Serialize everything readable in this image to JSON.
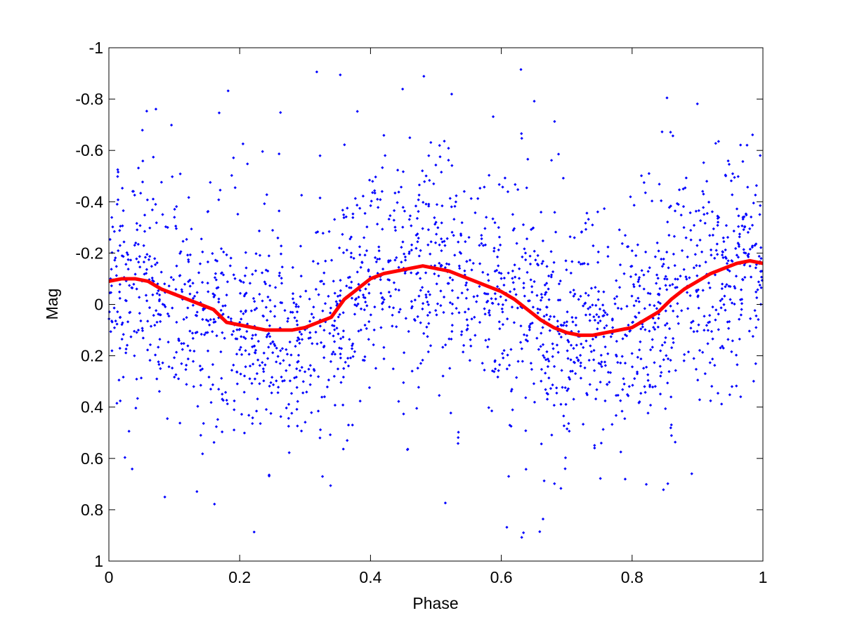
{
  "chart_data": {
    "type": "scatter",
    "title": "",
    "xlabel": "Phase",
    "ylabel": "Mag",
    "xlim": [
      0,
      1
    ],
    "ylim": [
      -1,
      1
    ],
    "y_reversed": true,
    "x_ticks": [
      "0",
      "0.2",
      "0.4",
      "0.6",
      "0.8",
      "1"
    ],
    "x_tick_values": [
      0,
      0.2,
      0.4,
      0.6,
      0.8,
      1
    ],
    "y_ticks": [
      "-1",
      "-0.8",
      "-0.6",
      "-0.4",
      "-0.2",
      "0",
      "0.2",
      "0.4",
      "0.6",
      "0.8",
      "1"
    ],
    "y_tick_values": [
      -1,
      -0.8,
      -0.6,
      -0.4,
      -0.2,
      0,
      0.2,
      0.4,
      0.6,
      0.8,
      1
    ],
    "grid": false,
    "legend": "none",
    "series": [
      {
        "kind": "scatter",
        "color": "#0000ff",
        "approx_count": 2000,
        "trend_amplitude": 1.0,
        "noise_sigma": 0.2,
        "outlier_fraction": 0.08
      },
      {
        "kind": "line",
        "color": "#ff0000",
        "x": [
          0,
          0.02,
          0.04,
          0.06,
          0.08,
          0.1,
          0.12,
          0.14,
          0.16,
          0.18,
          0.2,
          0.22,
          0.24,
          0.26,
          0.28,
          0.3,
          0.32,
          0.34,
          0.36,
          0.38,
          0.4,
          0.42,
          0.44,
          0.46,
          0.48,
          0.5,
          0.52,
          0.54,
          0.56,
          0.58,
          0.6,
          0.62,
          0.64,
          0.66,
          0.68,
          0.7,
          0.72,
          0.74,
          0.76,
          0.78,
          0.8,
          0.82,
          0.84,
          0.86,
          0.88,
          0.9,
          0.92,
          0.94,
          0.96,
          0.98,
          1.0
        ],
        "y": [
          -0.09,
          -0.1,
          -0.1,
          -0.09,
          -0.06,
          -0.04,
          -0.02,
          0.0,
          0.02,
          0.07,
          0.08,
          0.09,
          0.1,
          0.1,
          0.1,
          0.09,
          0.07,
          0.05,
          -0.02,
          -0.06,
          -0.1,
          -0.12,
          -0.13,
          -0.14,
          -0.15,
          -0.14,
          -0.13,
          -0.11,
          -0.09,
          -0.07,
          -0.05,
          -0.02,
          0.02,
          0.06,
          0.09,
          0.11,
          0.12,
          0.12,
          0.11,
          0.1,
          0.09,
          0.06,
          0.03,
          -0.02,
          -0.06,
          -0.09,
          -0.12,
          -0.14,
          -0.16,
          -0.17,
          -0.16
        ]
      }
    ]
  }
}
